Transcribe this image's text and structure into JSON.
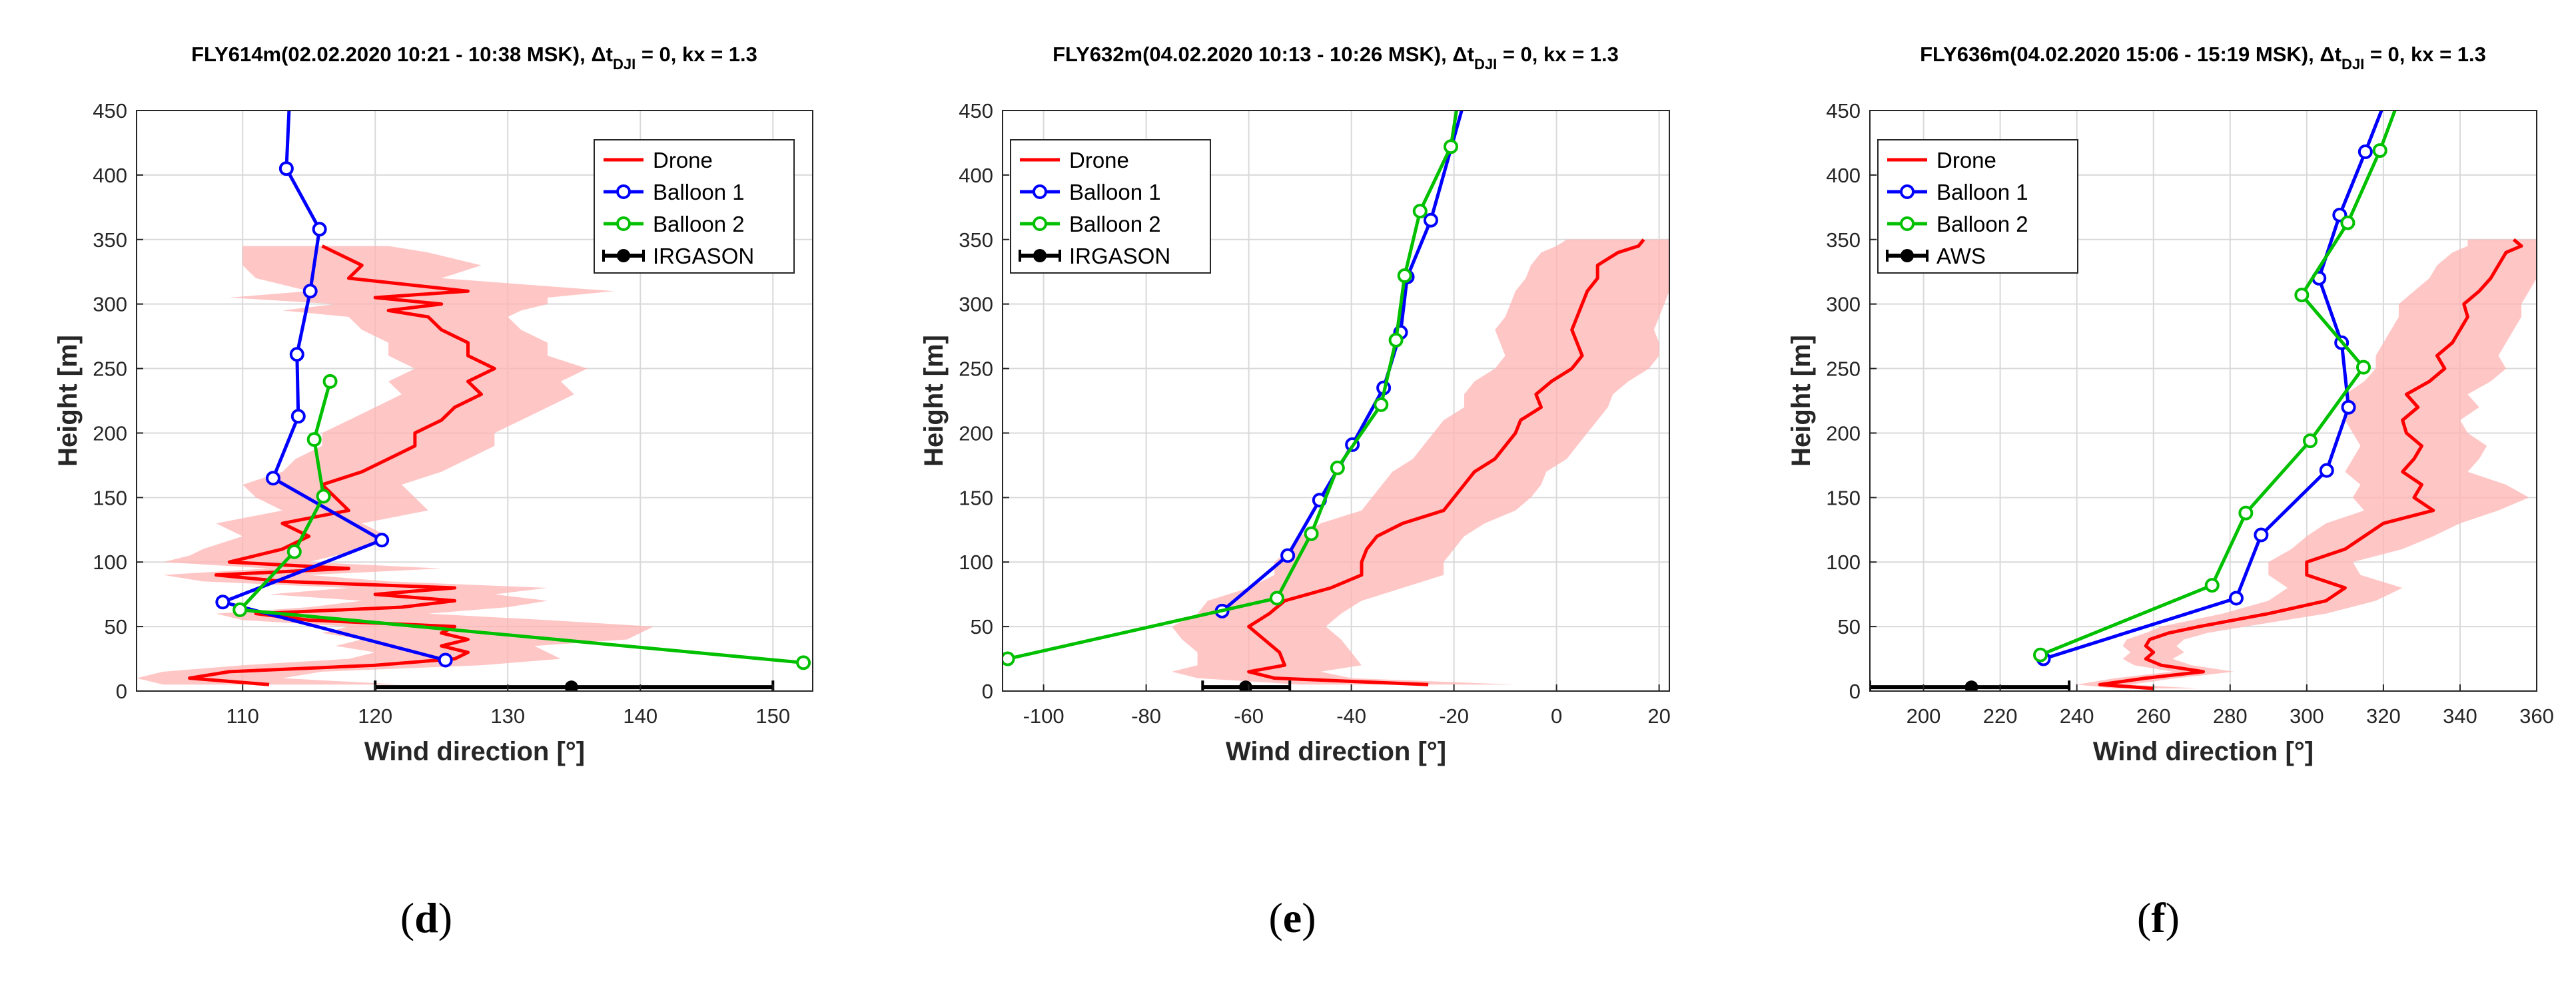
{
  "colors": {
    "drone": "#ff0000",
    "drone_band": "#ffb3b3",
    "balloon1": "#0000ff",
    "balloon2": "#00c000",
    "sensor": "#000000",
    "grid": "#d9d9d9",
    "axis": "#262626"
  },
  "legend": {
    "drone": "Drone",
    "balloon1": "Balloon 1",
    "balloon2": "Balloon 2"
  },
  "chart_data": [
    {
      "type": "line",
      "panel_label": {
        "open": "(",
        "letter": "d",
        "close": ")"
      },
      "title": {
        "main": "FLY614m(02.02.2020 10:21 - 10:38 MSK), Δt",
        "sub": "DJI",
        "tail": " = 0, kx = 1.3"
      },
      "xlabel": "Wind direction [°]",
      "ylabel": "Height [m]",
      "xlim": [
        102,
        153
      ],
      "ylim": [
        0,
        450
      ],
      "xticks": [
        110,
        120,
        130,
        140,
        150
      ],
      "yticks": [
        0,
        50,
        100,
        150,
        200,
        250,
        300,
        350,
        400,
        450
      ],
      "legend_position": "top-right",
      "sensor_label": "IRGASON",
      "drone": {
        "height": [
          5,
          10,
          15,
          20,
          25,
          30,
          35,
          40,
          45,
          50,
          55,
          60,
          65,
          70,
          75,
          80,
          85,
          90,
          95,
          100,
          105,
          110,
          120,
          130,
          140,
          150,
          160,
          170,
          180,
          190,
          200,
          210,
          220,
          230,
          240,
          250,
          260,
          270,
          280,
          290,
          295,
          300,
          305,
          310,
          320,
          330,
          340,
          345
        ],
        "direction": [
          112,
          106,
          109,
          120,
          126,
          127,
          125,
          127,
          125,
          126,
          115,
          111,
          122,
          126,
          120,
          126,
          113,
          108,
          118,
          109,
          111,
          113,
          115,
          113,
          118,
          117,
          116,
          119,
          121,
          123,
          123,
          125,
          126,
          128,
          127,
          129,
          127,
          127,
          125,
          124,
          121,
          125,
          120,
          127,
          118,
          119,
          117,
          116
        ],
        "band_low": [
          104,
          102,
          104,
          110,
          118,
          120,
          117,
          119,
          116,
          118,
          110,
          108,
          115,
          119,
          112,
          118,
          107,
          104,
          112,
          104,
          106,
          107,
          110,
          108,
          113,
          111,
          110,
          113,
          114,
          116,
          116,
          118,
          120,
          122,
          121,
          123,
          121,
          121,
          119,
          118,
          113,
          117,
          109,
          115,
          111,
          110,
          110,
          110
        ],
        "band_high": [
          122,
          113,
          116,
          128,
          134,
          133,
          132,
          139,
          140,
          141,
          133,
          124,
          130,
          133,
          129,
          133,
          121,
          115,
          125,
          115,
          117,
          119,
          121,
          119,
          124,
          123,
          122,
          125,
          127,
          129,
          129,
          131,
          133,
          135,
          134,
          136,
          133,
          133,
          131,
          130,
          131,
          133,
          133,
          138,
          125,
          128,
          124,
          121
        ]
      },
      "balloon1": {
        "direction": [
          125.3,
          108.5,
          120.5,
          112.3,
          114.2,
          114.1,
          115.1,
          115.8,
          113.3,
          113.5
        ],
        "height": [
          24,
          69,
          117,
          165,
          213,
          261,
          310,
          358,
          405,
          450
        ]
      },
      "balloon2": {
        "direction": [
          152.3,
          109.8,
          113.9,
          116.1,
          115.4,
          116.6
        ],
        "height": [
          22,
          63,
          108,
          151,
          195,
          240
        ]
      },
      "sensor": {
        "direction": 134.8,
        "low": 120,
        "high": 150,
        "height": 3
      }
    },
    {
      "type": "line",
      "panel_label": {
        "open": "(",
        "letter": "e",
        "close": ")"
      },
      "title": {
        "main": "FLY632m(04.02.2020 10:13 - 10:26 MSK), Δt",
        "sub": "DJI",
        "tail": " = 0, kx = 1.3"
      },
      "xlabel": "Wind direction [°]",
      "ylabel": "Height [m]",
      "xlim": [
        -108,
        22
      ],
      "ylim": [
        0,
        450
      ],
      "xticks": [
        -100,
        -80,
        -60,
        -40,
        -20,
        0,
        20
      ],
      "yticks": [
        0,
        50,
        100,
        150,
        200,
        250,
        300,
        350,
        400,
        450
      ],
      "legend_position": "top-left",
      "sensor_label": "IRGASON",
      "drone": {
        "height": [
          5,
          10,
          15,
          20,
          30,
          40,
          50,
          60,
          70,
          80,
          90,
          100,
          110,
          120,
          130,
          140,
          150,
          160,
          170,
          180,
          190,
          200,
          210,
          220,
          230,
          240,
          250,
          260,
          270,
          280,
          290,
          300,
          310,
          320,
          330,
          340,
          345,
          350
        ],
        "direction": [
          -25,
          -55,
          -60,
          -53,
          -54,
          -57,
          -60,
          -56,
          -53,
          -44,
          -38,
          -38,
          -37,
          -35,
          -30,
          -22,
          -20,
          -18,
          -16,
          -12,
          -10,
          -8,
          -7,
          -3,
          -4,
          -1,
          3,
          5,
          4,
          3,
          4,
          5,
          6,
          8,
          8,
          12,
          16,
          17
        ],
        "band_low": [
          -50,
          -70,
          -75,
          -70,
          -70,
          -73,
          -75,
          -70,
          -68,
          -60,
          -55,
          -55,
          -52,
          -50,
          -46,
          -38,
          -36,
          -34,
          -32,
          -28,
          -26,
          -24,
          -22,
          -18,
          -18,
          -16,
          -12,
          -10,
          -11,
          -12,
          -10,
          -9,
          -8,
          -6,
          -5,
          -3,
          0,
          2
        ],
        "band_high": [
          -8,
          -40,
          -46,
          -38,
          -40,
          -42,
          -45,
          -42,
          -38,
          -30,
          -22,
          -22,
          -20,
          -18,
          -14,
          -8,
          -5,
          -3,
          -2,
          2,
          4,
          6,
          8,
          10,
          11,
          14,
          18,
          20,
          20,
          19,
          20,
          21,
          22,
          22,
          22,
          22,
          22,
          22
        ]
      },
      "balloon1": {
        "direction": [
          -65.2,
          -52.4,
          -46.2,
          -39.8,
          -33.7,
          -30.4,
          -29.1,
          -24.5,
          -18.5
        ],
        "height": [
          62,
          105,
          148,
          191,
          235,
          278,
          321,
          365,
          450
        ]
      },
      "balloon2": {
        "direction": [
          -107,
          -54.5,
          -47.8,
          -42.7,
          -34.2,
          -31.3,
          -29.6,
          -26.6,
          -20.6,
          -19.5
        ],
        "height": [
          25,
          72,
          122,
          173,
          222,
          272,
          322,
          372,
          422,
          450
        ]
      },
      "sensor": {
        "direction": -60.6,
        "low": -69,
        "high": -52,
        "height": 3
      }
    },
    {
      "type": "line",
      "panel_label": {
        "open": "(",
        "letter": "f",
        "close": ")"
      },
      "title": {
        "main": "FLY636m(04.02.2020 15:06 - 15:19 MSK), Δt",
        "sub": "DJI",
        "tail": " = 0, kx = 1.3"
      },
      "xlabel": "Wind direction [°]",
      "ylabel": "Height [m]",
      "xlim": [
        186,
        360
      ],
      "ylim": [
        0,
        450
      ],
      "xticks": [
        200,
        220,
        240,
        260,
        280,
        300,
        320,
        340,
        360
      ],
      "yticks": [
        0,
        50,
        100,
        150,
        200,
        250,
        300,
        350,
        400,
        450
      ],
      "legend_position": "top-left",
      "sensor_label": "AWS",
      "drone": {
        "height": [
          2,
          5,
          10,
          15,
          20,
          25,
          30,
          35,
          40,
          45,
          50,
          60,
          70,
          80,
          90,
          100,
          110,
          120,
          130,
          140,
          150,
          160,
          170,
          180,
          190,
          200,
          210,
          220,
          230,
          240,
          250,
          260,
          270,
          280,
          290,
          300,
          310,
          320,
          330,
          340,
          345,
          350
        ],
        "direction": [
          260,
          246,
          258,
          273,
          262,
          258,
          260,
          258,
          259,
          264,
          272,
          290,
          305,
          310,
          300,
          300,
          310,
          315,
          320,
          333,
          328,
          330,
          325,
          328,
          330,
          326,
          325,
          329,
          326,
          332,
          336,
          334,
          338,
          340,
          342,
          341,
          345,
          348,
          350,
          352,
          356,
          354
        ],
        "band_low": [
          250,
          240,
          250,
          265,
          255,
          252,
          254,
          252,
          253,
          258,
          262,
          278,
          290,
          295,
          290,
          290,
          296,
          300,
          305,
          315,
          312,
          314,
          310,
          312,
          314,
          312,
          310,
          312,
          310,
          315,
          318,
          318,
          320,
          322,
          324,
          324,
          328,
          332,
          334,
          338,
          342,
          342
        ],
        "band_high": [
          272,
          254,
          266,
          281,
          270,
          265,
          268,
          266,
          268,
          274,
          284,
          305,
          318,
          325,
          314,
          312,
          325,
          333,
          340,
          350,
          358,
          352,
          342,
          345,
          347,
          342,
          340,
          345,
          342,
          348,
          352,
          350,
          352,
          354,
          356,
          356,
          358,
          360,
          360,
          360,
          360,
          360
        ]
      },
      "balloon1": {
        "direction": [
          231.3,
          281.6,
          288.1,
          305.2,
          310.9,
          309.1,
          303.2,
          308.6,
          315.3,
          319.5
        ],
        "height": [
          25,
          72,
          121,
          171,
          220,
          270,
          320,
          369,
          418,
          450
        ]
      },
      "balloon2": {
        "direction": [
          230.5,
          275.3,
          284.1,
          300.9,
          314.8,
          298.7,
          310.7,
          319.1,
          323.0
        ],
        "height": [
          28,
          82,
          138,
          194,
          251,
          307,
          363,
          419,
          450
        ]
      },
      "sensor": {
        "direction": 212.5,
        "low": 186,
        "high": 238,
        "height": 3
      }
    }
  ]
}
